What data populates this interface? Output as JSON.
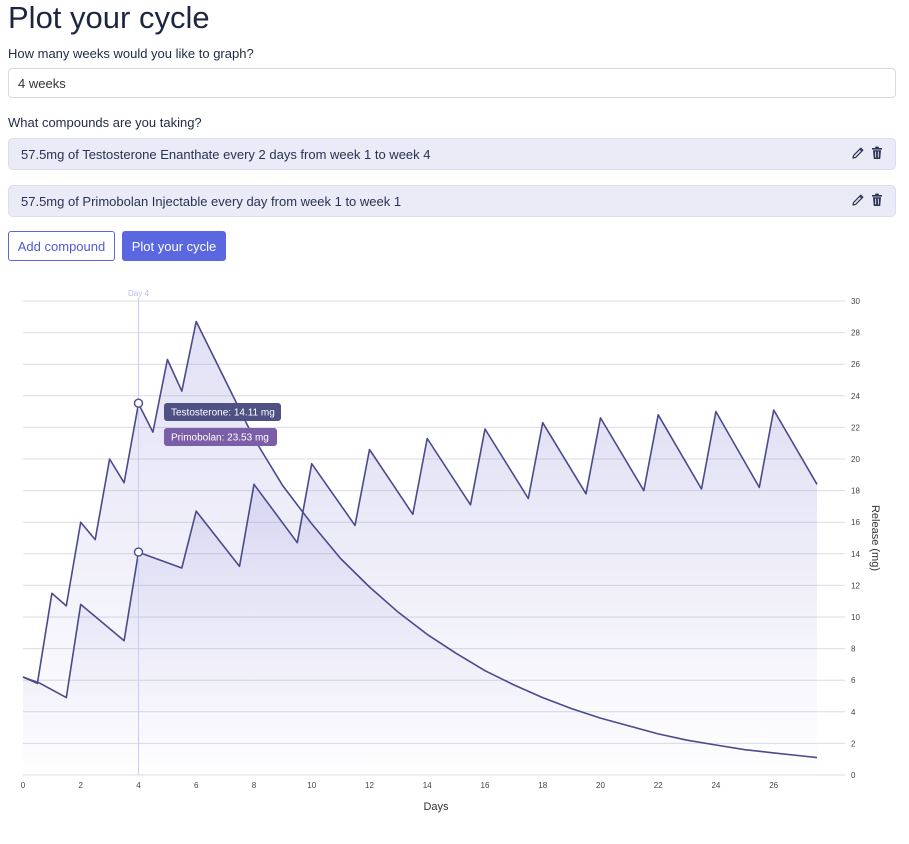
{
  "title": "Plot your cycle",
  "weeks": {
    "question": "How many weeks would you like to graph?",
    "value": "4 weeks"
  },
  "compounds": {
    "question": "What compounds are you taking?",
    "items": [
      {
        "text": "57.5mg of Testosterone Enanthate every 2 days from week 1 to week 4",
        "edit_icon": "pencil-icon",
        "delete_icon": "trash-icon"
      },
      {
        "text": "57.5mg of Primobolan Injectable every day from week 1 to week 1",
        "edit_icon": "pencil-icon",
        "delete_icon": "trash-icon"
      }
    ]
  },
  "buttons": {
    "add_compound": "Add compound",
    "plot": "Plot your cycle"
  },
  "colors": {
    "accent": "#5a67e0",
    "line": "#4a4a8c",
    "tooltip_testosterone": "#4f5185",
    "tooltip_primobolan": "#7b5ea8",
    "compound_bg": "#ebebf7"
  },
  "chart_data": {
    "type": "area",
    "xlabel": "Days",
    "ylabel": "Release (mg)",
    "xlim": [
      0,
      27.5
    ],
    "ylim": [
      0,
      30
    ],
    "x_ticks": [
      0,
      2,
      4,
      6,
      8,
      10,
      12,
      14,
      16,
      18,
      20,
      22,
      24,
      26
    ],
    "y_ticks": [
      0,
      2,
      4,
      6,
      8,
      10,
      12,
      14,
      16,
      18,
      20,
      22,
      24,
      26,
      28,
      30
    ],
    "grid": true,
    "crosshair": {
      "label": "Day 4",
      "x": 4
    },
    "tooltip": [
      {
        "label": "Testosterone: 14.11 mg",
        "x": 4,
        "y": 14.11
      },
      {
        "label": "Primobolan: 23.53 mg",
        "x": 4,
        "y": 23.53
      }
    ],
    "series": [
      {
        "name": "Testosterone",
        "points": [
          [
            0,
            6.2
          ],
          [
            0.6,
            5.8
          ],
          [
            1.5,
            4.9
          ],
          [
            2.0,
            10.8
          ],
          [
            3.5,
            8.5
          ],
          [
            4.0,
            14.1
          ],
          [
            5.5,
            13.1
          ],
          [
            6.0,
            16.7
          ],
          [
            7.5,
            13.2
          ],
          [
            8.0,
            18.4
          ],
          [
            9.5,
            14.7
          ],
          [
            10.0,
            19.7
          ],
          [
            11.5,
            15.8
          ],
          [
            12.0,
            20.6
          ],
          [
            13.5,
            16.5
          ],
          [
            14.0,
            21.3
          ],
          [
            15.5,
            17.1
          ],
          [
            16.0,
            21.9
          ],
          [
            17.5,
            17.5
          ],
          [
            18.0,
            22.3
          ],
          [
            19.5,
            17.8
          ],
          [
            20.0,
            22.6
          ],
          [
            21.5,
            18.0
          ],
          [
            22.0,
            22.8
          ],
          [
            23.5,
            18.1
          ],
          [
            24.0,
            23.0
          ],
          [
            25.5,
            18.2
          ],
          [
            26.0,
            23.1
          ],
          [
            27.5,
            18.4
          ]
        ]
      },
      {
        "name": "Primobolan",
        "points": [
          [
            0,
            6.2
          ],
          [
            0.5,
            5.8
          ],
          [
            1.0,
            11.5
          ],
          [
            1.5,
            10.7
          ],
          [
            2.0,
            16.0
          ],
          [
            2.5,
            14.9
          ],
          [
            3.0,
            20.0
          ],
          [
            3.5,
            18.5
          ],
          [
            4.0,
            23.5
          ],
          [
            4.5,
            21.7
          ],
          [
            5.0,
            26.3
          ],
          [
            5.5,
            24.3
          ],
          [
            6.0,
            28.7
          ],
          [
            7,
            25.0
          ],
          [
            8,
            21.3
          ],
          [
            9,
            18.3
          ],
          [
            10,
            15.9
          ],
          [
            11,
            13.7
          ],
          [
            12,
            11.9
          ],
          [
            13,
            10.3
          ],
          [
            14,
            8.9
          ],
          [
            15,
            7.7
          ],
          [
            16,
            6.6
          ],
          [
            17,
            5.7
          ],
          [
            18,
            4.9
          ],
          [
            19,
            4.2
          ],
          [
            20,
            3.6
          ],
          [
            21,
            3.1
          ],
          [
            22,
            2.6
          ],
          [
            23,
            2.2
          ],
          [
            24,
            1.9
          ],
          [
            25,
            1.6
          ],
          [
            26,
            1.4
          ],
          [
            27,
            1.2
          ],
          [
            27.5,
            1.1
          ]
        ]
      }
    ]
  }
}
